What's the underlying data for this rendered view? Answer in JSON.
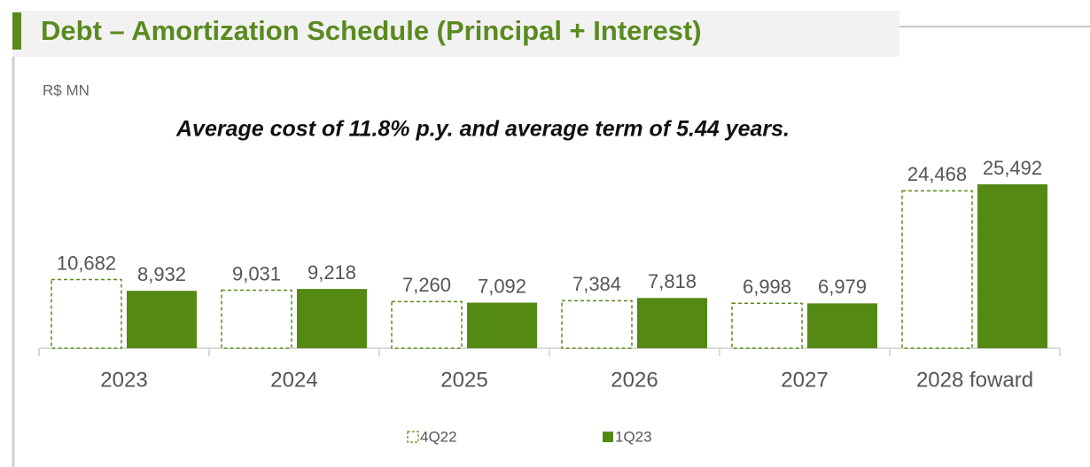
{
  "chart_data": {
    "type": "bar",
    "title": "Debt – Amortization Schedule (Principal + Interest)",
    "unit_label": "R$ MN",
    "subtitle": "Average cost of 11.8% p.y. and average term of 5.44 years.",
    "categories": [
      "2023",
      "2024",
      "2025",
      "2026",
      "2027",
      "2028 foward"
    ],
    "series": [
      {
        "name": "4Q22",
        "color": "#5a8a1e",
        "style": "dashed-outline",
        "values": [
          10682,
          9031,
          7260,
          7384,
          6998,
          24468
        ],
        "value_labels": [
          "10,682",
          "9,031",
          "7,260",
          "7,384",
          "6,998",
          "24,468"
        ]
      },
      {
        "name": "1Q23",
        "color": "#548a14",
        "style": "filled",
        "values": [
          8932,
          9218,
          7092,
          7818,
          6979,
          25492
        ],
        "value_labels": [
          "8,932",
          "9,218",
          "7,092",
          "7,818",
          "6,979",
          "25,492"
        ]
      }
    ],
    "legend": "bottom"
  }
}
